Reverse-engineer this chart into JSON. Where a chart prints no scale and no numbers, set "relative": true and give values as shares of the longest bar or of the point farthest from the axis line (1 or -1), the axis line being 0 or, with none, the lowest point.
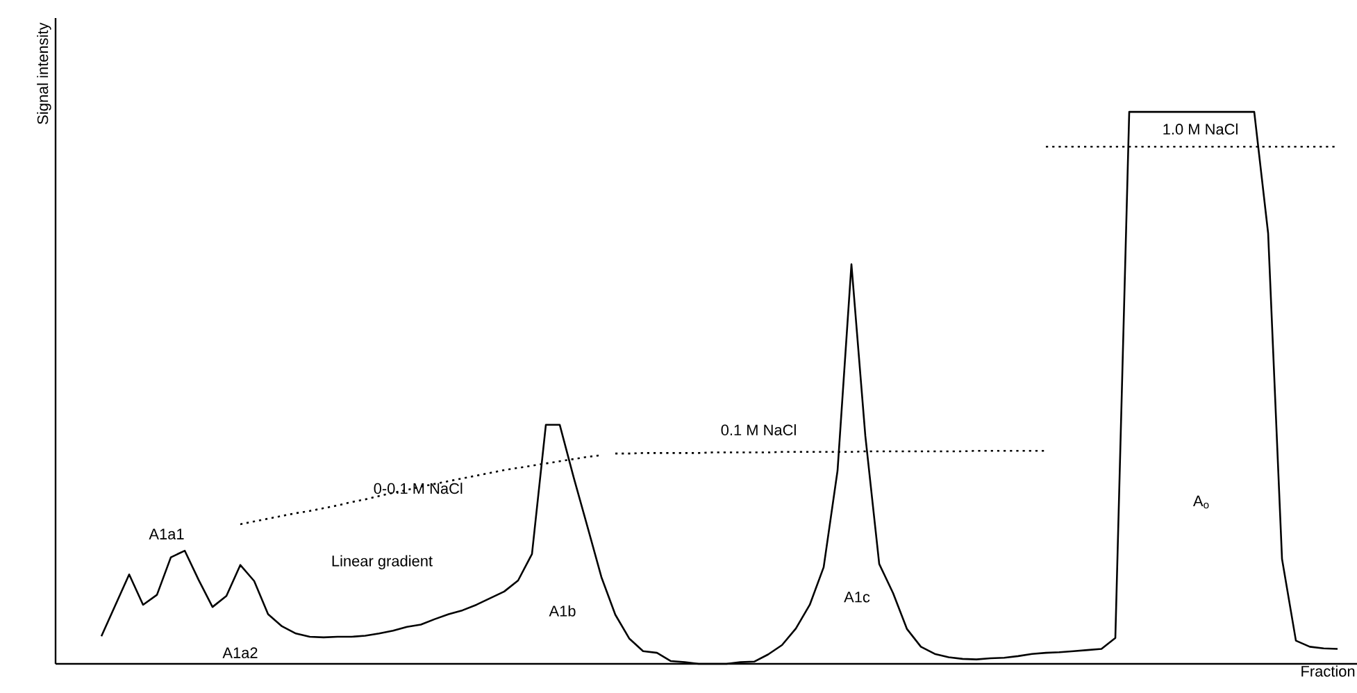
{
  "chart_data": {
    "type": "line",
    "relative": true,
    "xlabel": "Fraction",
    "ylabel": "Signal intensity",
    "categories": [
      null,
      null,
      null,
      null,
      null,
      null,
      null,
      null,
      null,
      null,
      null,
      null,
      null,
      null,
      null,
      null,
      null,
      null,
      null,
      null,
      null,
      null,
      null,
      null,
      null,
      null,
      null,
      null,
      null,
      null,
      null,
      null,
      null,
      null,
      null,
      null,
      null,
      null,
      null,
      null,
      null,
      null,
      null,
      null,
      null,
      null,
      null,
      null,
      null,
      null,
      null,
      null,
      null,
      null,
      null,
      null,
      null,
      null,
      null,
      null,
      null,
      null,
      null,
      null,
      null,
      null,
      null,
      null,
      null,
      null,
      null,
      null,
      null,
      null,
      null,
      null,
      null,
      null,
      null,
      null,
      null,
      null,
      null,
      null,
      null,
      null,
      null,
      null,
      null,
      null
    ],
    "series": [
      {
        "color": "#000000",
        "line_style": "solid",
        "values": [
          0.05,
          0.106,
          0.162,
          0.107,
          0.125,
          0.193,
          0.205,
          0.152,
          0.103,
          0.123,
          0.179,
          0.15,
          0.09,
          0.068,
          0.055,
          0.049,
          0.048,
          0.049,
          0.049,
          0.051,
          0.055,
          0.06,
          0.067,
          0.071,
          0.081,
          0.09,
          0.097,
          0.107,
          0.119,
          0.131,
          0.151,
          0.199,
          0.433,
          0.433,
          0.338,
          0.248,
          0.157,
          0.089,
          0.046,
          0.023,
          0.02,
          0.005,
          0.003,
          0,
          0,
          0,
          0.003,
          0.004,
          0.017,
          0.034,
          0.064,
          0.107,
          0.175,
          0.35,
          0.724,
          0.413,
          0.181,
          0.128,
          0.063,
          0.031,
          0.018,
          0.012,
          0.009,
          0.008,
          0.01,
          0.011,
          0.014,
          0.018,
          0.02,
          0.021,
          0.023,
          0.025,
          0.027,
          0.047,
          1,
          1,
          1,
          1,
          1,
          1,
          1,
          1,
          1,
          1,
          0.78,
          0.19,
          0.042,
          0.031,
          0.028,
          0.027
        ]
      },
      {
        "name": "0-0.1 M NaCl",
        "color": "#000000",
        "line_style": "dotted",
        "values": [
          null,
          null,
          null,
          null,
          null,
          null,
          null,
          null,
          null,
          null,
          0.253,
          0.258,
          0.263,
          0.268,
          0.273,
          0.277,
          0.282,
          0.287,
          0.293,
          0.298,
          0.304,
          0.31,
          0.315,
          0.321,
          0.326,
          0.331,
          0.336,
          0.341,
          0.346,
          0.351,
          0.355,
          0.359,
          0.363,
          0.367,
          0.371,
          0.375,
          0.378,
          null,
          null,
          null,
          null,
          null,
          null,
          null,
          null,
          null,
          null,
          null,
          null,
          null,
          null,
          null,
          null,
          null,
          null,
          null,
          null,
          null,
          null,
          null,
          null,
          null,
          null,
          null,
          null,
          null,
          null,
          null,
          null,
          null,
          null,
          null,
          null,
          null,
          null,
          null,
          null,
          null,
          null,
          null,
          null,
          null,
          null,
          null,
          null,
          null,
          null,
          null,
          null,
          null
        ]
      },
      {
        "name": "0.1 M NaCl",
        "color": "#000000",
        "line_style": "dotted",
        "values": [
          null,
          null,
          null,
          null,
          null,
          null,
          null,
          null,
          null,
          null,
          null,
          null,
          null,
          null,
          null,
          null,
          null,
          null,
          null,
          null,
          null,
          null,
          null,
          null,
          null,
          null,
          null,
          null,
          null,
          null,
          null,
          null,
          null,
          null,
          null,
          null,
          null,
          0.381,
          0.381,
          0.382,
          0.382,
          0.382,
          0.382,
          0.382,
          0.383,
          0.383,
          0.383,
          0.383,
          0.383,
          0.384,
          0.384,
          0.384,
          0.384,
          0.384,
          0.384,
          0.385,
          0.385,
          0.385,
          0.385,
          0.385,
          0.385,
          0.385,
          0.385,
          0.386,
          0.386,
          0.386,
          0.386,
          0.386,
          0.386,
          null,
          null,
          null,
          null,
          null,
          null,
          null,
          null,
          null,
          null,
          null,
          null,
          null,
          null,
          null,
          null,
          null,
          null,
          null,
          null,
          null
        ]
      },
      {
        "name": "1.0 M NaCl",
        "color": "#000000",
        "line_style": "dotted",
        "values": [
          null,
          null,
          null,
          null,
          null,
          null,
          null,
          null,
          null,
          null,
          null,
          null,
          null,
          null,
          null,
          null,
          null,
          null,
          null,
          null,
          null,
          null,
          null,
          null,
          null,
          null,
          null,
          null,
          null,
          null,
          null,
          null,
          null,
          null,
          null,
          null,
          null,
          null,
          null,
          null,
          null,
          null,
          null,
          null,
          null,
          null,
          null,
          null,
          null,
          null,
          null,
          null,
          null,
          null,
          null,
          null,
          null,
          null,
          null,
          null,
          null,
          null,
          null,
          null,
          null,
          null,
          null,
          null,
          0.937,
          0.937,
          0.937,
          0.937,
          0.937,
          0.937,
          0.937,
          0.937,
          0.937,
          0.937,
          0.937,
          0.937,
          0.937,
          0.937,
          0.937,
          0.937,
          0.937,
          0.937,
          0.937,
          0.937,
          0.937,
          0.937
        ]
      }
    ],
    "annotations": [
      "A1a1",
      "A1a2",
      "Linear gradient",
      "A1b",
      "A1c",
      "A$_{o}$"
    ],
    "marker": "none"
  }
}
